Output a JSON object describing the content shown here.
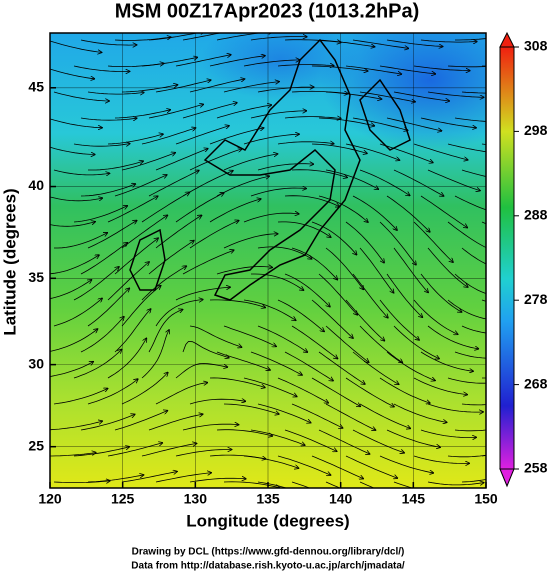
{
  "map": {
    "title": "MSM 00Z17Apr2023 (1013.2hPa)",
    "xlabel": "Longitude (degrees)",
    "ylabel": "Latitude  (degrees)",
    "xlim": [
      120,
      150
    ],
    "ylim": [
      22.4,
      47.6
    ],
    "xticks": [
      120,
      125,
      130,
      135,
      140,
      145,
      150
    ],
    "yticks": [
      25,
      30,
      35,
      40,
      45
    ],
    "colorbar": {
      "lim": [
        258,
        308
      ],
      "ticks": [
        258,
        268,
        278,
        288,
        298,
        308
      ]
    }
  },
  "credits": [
    "Drawing by DCL (https://www.gfd-dennou.org/library/dcl/)",
    "Data from http://database.rish.kyoto-u.ac.jp/arch/jmadata/"
  ]
}
